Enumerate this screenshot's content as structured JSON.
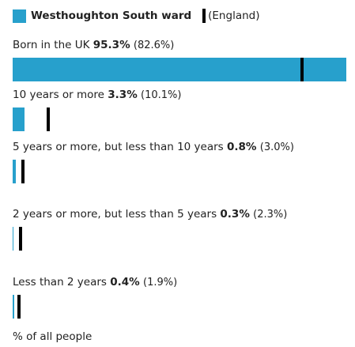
{
  "chart_data": {
    "type": "bar",
    "orientation": "horizontal",
    "categories": [
      "Born in the UK",
      "10 years or more",
      "5 years or more, but less than 10 years",
      "2 years or more, but less than 5 years",
      "Less than 2 years"
    ],
    "series": [
      {
        "name": "Westhoughton South ward",
        "color": "#27a0cc",
        "values": [
          95.3,
          3.3,
          0.8,
          0.3,
          0.4
        ],
        "value_labels": [
          "95.3%",
          "3.3%",
          "0.8%",
          "0.3%",
          "0.4%"
        ]
      },
      {
        "name": "(England)",
        "color": "#000000",
        "values": [
          82.6,
          10.1,
          3.0,
          2.3,
          1.9
        ],
        "value_labels": [
          "(82.6%)",
          "(10.1%)",
          "(3.0%)",
          "(2.3%)",
          "(1.9%)"
        ]
      }
    ],
    "xlabel": "% of all people",
    "xlim": [
      0,
      100
    ]
  }
}
